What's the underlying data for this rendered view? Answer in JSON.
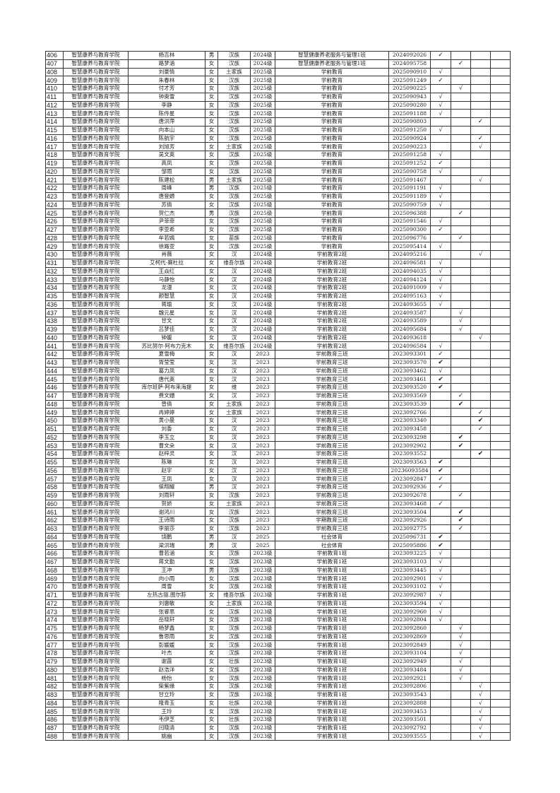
{
  "check_columns": 4,
  "rows": [
    [
      "406",
      "智慧康养与教育学院",
      "杨吉林",
      "男",
      "汉族",
      "2024级",
      "智慧健康养老服务与管理1班",
      "2024092026",
      1,
      "✓"
    ],
    [
      "407",
      "智慧康养与教育学院",
      "路梦涵",
      "女",
      "汉族",
      "2024级",
      "智慧健康养老服务与管理1班",
      "2024095758",
      2,
      "✓"
    ],
    [
      "408",
      "智慧康养与教育学院",
      "刘豪情",
      "女",
      "土家族",
      "2025级",
      "学前教育",
      "2025090910",
      1,
      "√"
    ],
    [
      "409",
      "智慧康养与教育学院",
      "朱春林",
      "女",
      "汉族",
      "2025级",
      "学前教育",
      "2025091249",
      1,
      "✓"
    ],
    [
      "410",
      "智慧康养与教育学院",
      "付才芳",
      "女",
      "汉族",
      "2025级",
      "学前教育",
      "2025090225",
      2,
      "√"
    ],
    [
      "411",
      "智慧康养与教育学院",
      "钟奥雪",
      "女",
      "汉族",
      "2025级",
      "学前教育",
      "2025090943",
      1,
      "√"
    ],
    [
      "412",
      "智慧康养与教育学院",
      "李静",
      "女",
      "汉族",
      "2025级",
      "学前教育",
      "2025090280",
      1,
      "√"
    ],
    [
      "413",
      "智慧康养与教育学院",
      "陈传星",
      "女",
      "汉族",
      "2025级",
      "学前教育",
      "2025091188",
      1,
      "√"
    ],
    [
      "414",
      "智慧康养与教育学院",
      "唐洪萍",
      "女",
      "汉族",
      "2025级",
      "学前教育",
      "2025090803",
      3,
      "✓"
    ],
    [
      "415",
      "智慧康养与教育学院",
      "向本山",
      "女",
      "汉族",
      "2025级",
      "学前教育",
      "2025091250",
      1,
      "√"
    ],
    [
      "416",
      "智慧康养与教育学院",
      "陈航宇",
      "女",
      "汉族",
      "2025级",
      "学前教育",
      "2025090924",
      3,
      "✓"
    ],
    [
      "417",
      "智慧康养与教育学院",
      "刘旭芳",
      "女",
      "土家族",
      "2025级",
      "学前教育",
      "2025090223",
      3,
      "√"
    ],
    [
      "418",
      "智慧康养与教育学院",
      "吴文英",
      "女",
      "汉族",
      "2025级",
      "学前教育",
      "2025091258",
      1,
      "√"
    ],
    [
      "419",
      "智慧康养与教育学院",
      "高凤",
      "女",
      "汉族",
      "2025级",
      "学前教育",
      "2025091252",
      1,
      "✓"
    ],
    [
      "420",
      "智慧康养与教育学院",
      "邹雨",
      "女",
      "汉族",
      "2025级",
      "学前教育",
      "2025090758",
      1,
      "√"
    ],
    [
      "421",
      "智慧康养与教育学院",
      "陈建松",
      "男",
      "土家族",
      "2025级",
      "学前教育",
      "2025091467",
      3,
      "√"
    ],
    [
      "422",
      "智慧康养与教育学院",
      "周峰",
      "男",
      "汉族",
      "2025级",
      "学前教育",
      "2025091191",
      1,
      "√"
    ],
    [
      "423",
      "智慧康养与教育学院",
      "唐登嫄",
      "女",
      "汉族",
      "2025级",
      "学前教育",
      "2025091189",
      1,
      "√"
    ],
    [
      "424",
      "智慧康养与教育学院",
      "苏倩",
      "女",
      "汉族",
      "2025级",
      "学前教育",
      "2025090759",
      1,
      "√"
    ],
    [
      "425",
      "智慧康养与教育学院",
      "贺仁杰",
      "男",
      "汉族",
      "2025级",
      "学前教育",
      "2025096388",
      2,
      "✓"
    ],
    [
      "426",
      "智慧康养与教育学院",
      "尹菲菲",
      "女",
      "汉族",
      "2025级",
      "学前教育",
      "2025091546",
      1,
      "√"
    ],
    [
      "427",
      "智慧康养与教育学院",
      "李亚希",
      "女",
      "汉族",
      "2025级",
      "学前教育",
      "2025090300",
      1,
      "✓"
    ],
    [
      "428",
      "智慧康养与教育学院",
      "牟若嫣",
      "女",
      "苗族",
      "2025级",
      "学前教育",
      "2025096776",
      2,
      "✓"
    ],
    [
      "429",
      "智慧康养与教育学院",
      "徐路亚",
      "女",
      "汉族",
      "2025级",
      "学前教育",
      "2025095414",
      1,
      "√"
    ],
    [
      "430",
      "智慧康养与教育学院",
      "肖薇",
      "女",
      "汉",
      "2024级",
      "学前教育2班",
      "2024095216",
      3,
      "√"
    ],
    [
      "431",
      "智慧康养与教育学院",
      "艾柯代·赛杜拉",
      "女",
      "维吾尔族",
      "2024级",
      "学前教育2班",
      "2024096581",
      1,
      "√"
    ],
    [
      "432",
      "智慧康养与教育学院",
      "王焱红",
      "女",
      "汉",
      "2024级",
      "学前教育2班",
      "2024094035",
      1,
      "√"
    ],
    [
      "433",
      "智慧康养与教育学院",
      "马静怡",
      "女",
      "汉",
      "2024级",
      "学前教育2班",
      "2024094124",
      1,
      "√"
    ],
    [
      "434",
      "智慧康养与教育学院",
      "龙漫",
      "女",
      "汉",
      "2024级",
      "学前教育2班",
      "2024091009",
      1,
      "√"
    ],
    [
      "435",
      "智慧康养与教育学院",
      "颜智慧",
      "女",
      "汉",
      "2024级",
      "学前教育2班",
      "2024095163",
      1,
      "√"
    ],
    [
      "436",
      "智慧康养与教育学院",
      "蒋瑜",
      "女",
      "汉",
      "2024级",
      "学前教育2班",
      "2024093655",
      1,
      "√"
    ],
    [
      "437",
      "智慧康养与教育学院",
      "魏元星",
      "女",
      "汉",
      "2024级",
      "学前教育2班",
      "2024093587",
      2,
      "√"
    ],
    [
      "438",
      "智慧康养与教育学院",
      "甘文",
      "女",
      "汉",
      "2024级",
      "学前教育2班",
      "2024093589",
      2,
      "√"
    ],
    [
      "439",
      "智慧康养与教育学院",
      "吕梦佳",
      "女",
      "汉",
      "2024级",
      "学前教育2班",
      "2024095684",
      2,
      "√"
    ],
    [
      "440",
      "智慧康养与教育学院",
      "钟媛",
      "女",
      "汉",
      "2024级",
      "学前教育2班",
      "2024093618",
      3,
      "√"
    ],
    [
      "441",
      "智慧康养与教育学院",
      "苏比努尔·阿布力克木",
      "女",
      "维吾尔族",
      "2024级",
      "学前教育2班",
      "2024096584",
      1,
      "√"
    ],
    [
      "442",
      "智慧康养与教育学院",
      "夏雪梅",
      "女",
      "汉",
      "2023",
      "学前教育三班",
      "2023093301",
      1,
      "✓"
    ],
    [
      "443",
      "智慧康养与教育学院",
      "胥莹莹",
      "女",
      "汉",
      "2023",
      "学前教育三班",
      "2023093570",
      1,
      "✔"
    ],
    [
      "444",
      "智慧康养与教育学院",
      "葛力凤",
      "女",
      "汉",
      "2023",
      "学前教育三班",
      "2023093462",
      1,
      "√"
    ],
    [
      "445",
      "智慧康养与教育学院",
      "唐代英",
      "女",
      "汉",
      "2023",
      "学前教育三班",
      "2023093461",
      1,
      "✔"
    ],
    [
      "446",
      "智慧康养与教育学院",
      "库尔班萨·阿布来海提",
      "女",
      "维",
      "2023",
      "学前教育三班",
      "2023093520",
      1,
      "✔"
    ],
    [
      "447",
      "智慧康养与教育学院",
      "费文姗",
      "女",
      "汉",
      "2023",
      "学前教育三班",
      "2023093569",
      2,
      "✓"
    ],
    [
      "448",
      "智慧康养与教育学院",
      "曾倩",
      "女",
      "土家族",
      "2023",
      "学前教育三班",
      "2023093539",
      2,
      "✔"
    ],
    [
      "449",
      "智慧康养与教育学院",
      "冉婷婷",
      "女",
      "土家族",
      "2023",
      "学前教育三班",
      "2023092766",
      3,
      "✓"
    ],
    [
      "450",
      "智慧康养与教育学院",
      "黄小曼",
      "女",
      "汉",
      "2023",
      "学前教育三班",
      "2023093340",
      3,
      "✔"
    ],
    [
      "451",
      "智慧康养与教育学院",
      "刘香",
      "女",
      "汉",
      "2023",
      "学前教育三班",
      "2023093458",
      3,
      "✓"
    ],
    [
      "452",
      "智慧康养与教育学院",
      "李玉立",
      "女",
      "汉",
      "2023",
      "学前教育三班",
      "2023093298",
      2,
      "✔"
    ],
    [
      "453",
      "智慧康养与教育学院",
      "曹文朵",
      "女",
      "汉",
      "2023",
      "学前教育三班",
      "2023092902",
      2,
      "✔"
    ],
    [
      "454",
      "智慧康养与教育学院",
      "赵梓灵",
      "女",
      "汉",
      "2023",
      "学前教育三班",
      "2023093552",
      3,
      "✔"
    ],
    [
      "455",
      "智慧康养与教育学院",
      "陈琳",
      "女",
      "汉",
      "2023",
      "学前教育三班",
      "2023093563",
      1,
      "✔"
    ],
    [
      "456",
      "智慧康养与教育学院",
      "赵宇",
      "女",
      "汉",
      "2023",
      "学前教育三班",
      "20236093584",
      1,
      "✔"
    ],
    [
      "457",
      "智慧康养与教育学院",
      "王凤",
      "女",
      "汉",
      "2023",
      "学前教育三班",
      "2023092847",
      1,
      "✓"
    ],
    [
      "458",
      "智慧康养与教育学院",
      "侯翔耀",
      "男",
      "汉",
      "2023",
      "学前教育三班",
      "2023092936",
      1,
      "✓"
    ],
    [
      "459",
      "智慧康养与教育学院",
      "刘雨轩",
      "女",
      "汉族",
      "2023",
      "学前教育三班",
      "2023092678",
      2,
      "✓"
    ],
    [
      "460",
      "智慧康养与教育学院",
      "贺娇",
      "女",
      "土家族",
      "2023",
      "学前教育三班",
      "2023093468",
      1,
      "✓"
    ],
    [
      "461",
      "智慧康养与教育学院",
      "谢鸿川",
      "女",
      "汉族",
      "2023",
      "学前教育三班",
      "2023093504",
      2,
      "✔"
    ],
    [
      "462",
      "智慧康养与教育学院",
      "王诗雨",
      "女",
      "汉族",
      "2023",
      "学期教育三班",
      "2023092926",
      2,
      "✔"
    ],
    [
      "463",
      "智慧康养与教育学院",
      "李丽莎",
      "女",
      "汉族",
      "2023",
      "学前教育三班",
      "2023092775",
      2,
      "✓"
    ],
    [
      "464",
      "智慧康养与教育学院",
      "饶鹏",
      "男",
      "汉",
      "2025",
      "社会体育",
      "2025096731",
      1,
      "✔"
    ],
    [
      "465",
      "智慧康养与教育学院",
      "梁洪瑞",
      "男",
      "汉",
      "2025",
      "社会体育",
      "2025095886",
      1,
      "✔"
    ],
    [
      "466",
      "智慧康养与教育学院",
      "曹若涵",
      "女",
      "汉族",
      "2023级",
      "学前教育1班",
      "2023093225",
      1,
      "√"
    ],
    [
      "467",
      "智慧康养与教育学院",
      "蒋文勤",
      "女",
      "汉族",
      "2023级",
      "学前教育1班",
      "2023093103",
      1,
      "√"
    ],
    [
      "468",
      "智慧康养与教育学院",
      "王冲",
      "男",
      "汉族",
      "2023级",
      "学前教育1班",
      "2023093445",
      1,
      "√"
    ],
    [
      "469",
      "智慧康养与教育学院",
      "向小雨",
      "女",
      "汉族",
      "2023级",
      "学前教育1班",
      "2023092901",
      1,
      "√"
    ],
    [
      "470",
      "智慧康养与教育学院",
      "周雪",
      "女",
      "汉族",
      "2023级",
      "学前教育1班",
      "2023093102",
      1,
      "√"
    ],
    [
      "471",
      "智慧康养与教育学院",
      "左热古丽.图尔荪",
      "女",
      "维吾尔族",
      "2023级",
      "学前教育1班",
      "2023092987",
      1,
      "√"
    ],
    [
      "472",
      "智慧康养与教育学院",
      "刘惠敏",
      "女",
      "土家族",
      "2023级",
      "学前教育1班",
      "2023093594",
      1,
      "√"
    ],
    [
      "473",
      "智慧康养与教育学院",
      "张睿思",
      "女",
      "汉族",
      "2023级",
      "学前教育1班",
      "2023092960",
      1,
      "√"
    ],
    [
      "474",
      "智慧康养与教育学院",
      "岳晓轩",
      "女",
      "汉族",
      "2023级",
      "学前教育1班",
      "2023092804",
      1,
      "√"
    ],
    [
      "475",
      "智慧康养与教育学院",
      "杨梦鑫",
      "女",
      "汉族",
      "2023级",
      "学前教育1班",
      "2023092860",
      2,
      "√"
    ],
    [
      "476",
      "智慧康养与教育学院",
      "鲁思雨",
      "女",
      "汉族",
      "2023级",
      "学前教育1班",
      "2023092869",
      2,
      "√"
    ],
    [
      "477",
      "智慧康养与教育学院",
      "彭媛媛",
      "女",
      "汉族",
      "2023级",
      "学前教育1班",
      "2023092849",
      2,
      "√"
    ],
    [
      "478",
      "智慧康养与教育学院",
      "叶杰",
      "女",
      "汉族",
      "2023级",
      "学前教育1班",
      "2023093104",
      2,
      "√"
    ],
    [
      "479",
      "智慧康养与教育学院",
      "谢霞",
      "女",
      "壮族",
      "2023级",
      "学前教育1班",
      "2023092949",
      2,
      "√"
    ],
    [
      "480",
      "智慧康养与教育学院",
      "赵浩洋",
      "女",
      "汉族",
      "2023级",
      "学前教育1班",
      "2023093484",
      2,
      "√"
    ],
    [
      "481",
      "智慧康养与教育学院",
      "杨怡",
      "女",
      "汉族",
      "2023级",
      "学前教育1班",
      "2023092921",
      2,
      "√"
    ],
    [
      "482",
      "智慧康养与教育学院",
      "柴紫缘",
      "女",
      "汉族",
      "2023级",
      "学前教育1班",
      "2023092806",
      3,
      "√"
    ],
    [
      "483",
      "智慧康养与教育学院",
      "甘立玲",
      "女",
      "汉族",
      "2023级",
      "学前教育1班",
      "2023093543",
      3,
      "√"
    ],
    [
      "484",
      "智慧康养与教育学院",
      "隆青玉",
      "女",
      "壮族",
      "2023级",
      "学前教育1班",
      "2023092888",
      3,
      "√"
    ],
    [
      "485",
      "智慧康养与教育学院",
      "王玲",
      "女",
      "汉族",
      "2023级",
      "学前教育1班",
      "2023093453",
      3,
      "√"
    ],
    [
      "486",
      "智慧康养与教育学院",
      "韦伊芝",
      "女",
      "壮族",
      "2023级",
      "学前教育1班",
      "2023093501",
      3,
      "√"
    ],
    [
      "487",
      "智慧康养与教育学院",
      "闫晓清",
      "女",
      "汉族",
      "2023级",
      "学前教育1班",
      "2023092792",
      3,
      "√"
    ],
    [
      "488",
      "智慧康养与教育学院",
      "姚幽",
      "女",
      "汉族",
      "2023级",
      "学前教育1班",
      "2023093555",
      3,
      "√"
    ]
  ]
}
